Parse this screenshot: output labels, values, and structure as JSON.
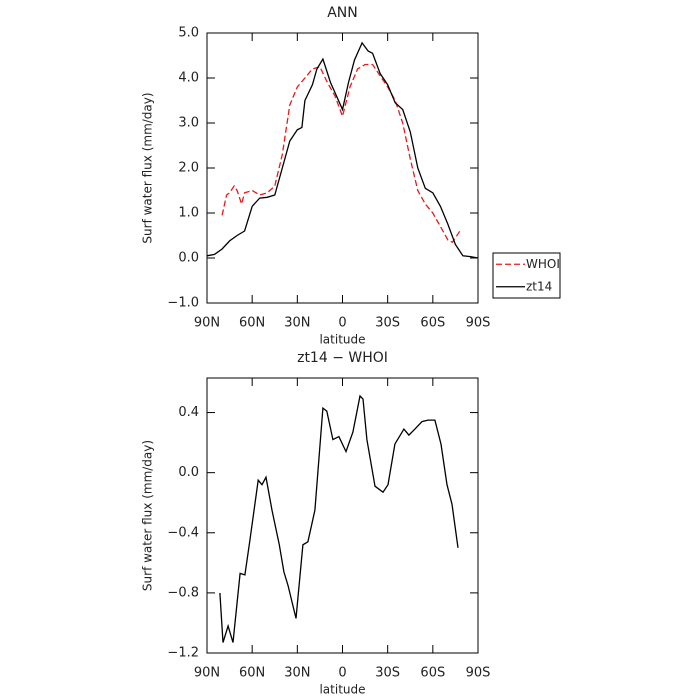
{
  "chart_data": [
    {
      "type": "line",
      "title": "ANN",
      "xlabel": "latitude",
      "ylabel": "Surf water flux (mm/day)",
      "xlim": [
        90,
        -90
      ],
      "ylim": [
        -1,
        5
      ],
      "xticks": [
        {
          "value": 90,
          "label": "90N"
        },
        {
          "value": 60,
          "label": "60N"
        },
        {
          "value": 30,
          "label": "30N"
        },
        0,
        {
          "value": -30,
          "label": "30S"
        },
        {
          "value": -60,
          "label": "60S"
        },
        {
          "value": -90,
          "label": "90S"
        }
      ],
      "yticks": [
        {
          "value": -1,
          "label": "−1.0"
        },
        {
          "value": 0,
          "label": "0.0"
        },
        {
          "value": 1,
          "label": "1.0"
        },
        {
          "value": 2,
          "label": "2.0"
        },
        {
          "value": 3,
          "label": "3.0"
        },
        {
          "value": 4,
          "label": "4.0"
        },
        {
          "value": 5,
          "label": "5.0"
        }
      ],
      "legend": "right",
      "series": [
        {
          "name": "WHOI",
          "color": "#e8191c",
          "dashed": true,
          "x": [
            80,
            77,
            75,
            72,
            70,
            67,
            65,
            60,
            55,
            50,
            45,
            40,
            35,
            30,
            25,
            20,
            15,
            10,
            5,
            0,
            -5,
            -10,
            -15,
            -20,
            -25,
            -30,
            -35,
            -40,
            -45,
            -50,
            -55,
            -60,
            -65,
            -70,
            -73,
            -78
          ],
          "values": [
            0.95,
            1.4,
            1.45,
            1.6,
            1.5,
            1.2,
            1.45,
            1.5,
            1.4,
            1.45,
            1.6,
            2.3,
            3.4,
            3.8,
            4.0,
            4.2,
            4.25,
            3.9,
            3.6,
            3.15,
            3.8,
            4.2,
            4.3,
            4.3,
            4.05,
            3.8,
            3.5,
            3.0,
            2.2,
            1.5,
            1.2,
            1.0,
            0.7,
            0.4,
            0.35,
            0.6
          ]
        },
        {
          "name": "zt14",
          "color": "#000000",
          "dashed": false,
          "x": [
            90,
            85,
            80,
            75,
            70,
            65,
            60,
            55,
            50,
            45,
            40,
            35,
            30,
            27,
            25,
            20,
            17,
            13,
            8,
            4,
            0,
            -4,
            -8,
            -13,
            -17,
            -20,
            -25,
            -30,
            -35,
            -40,
            -45,
            -50,
            -55,
            -60,
            -65,
            -70,
            -75,
            -80,
            -85,
            -90
          ],
          "values": [
            0.05,
            0.08,
            0.2,
            0.38,
            0.5,
            0.6,
            1.15,
            1.33,
            1.35,
            1.4,
            2.0,
            2.6,
            2.85,
            2.9,
            3.5,
            3.85,
            4.2,
            4.42,
            3.9,
            3.6,
            3.3,
            3.9,
            4.4,
            4.78,
            4.6,
            4.55,
            4.1,
            3.85,
            3.45,
            3.3,
            2.8,
            2.0,
            1.55,
            1.45,
            1.15,
            0.75,
            0.3,
            0.05,
            0.03,
            0.0
          ]
        }
      ]
    },
    {
      "type": "line",
      "title": "zt14 − WHOI",
      "xlabel": "latitude",
      "ylabel": "Surf water flux (mm/day)",
      "xlim": [
        90,
        -90
      ],
      "ylim": [
        -1.2,
        0.63
      ],
      "xticks": [
        {
          "value": 90,
          "label": "90N"
        },
        {
          "value": 60,
          "label": "60N"
        },
        {
          "value": 30,
          "label": "30N"
        },
        0,
        {
          "value": -30,
          "label": "30S"
        },
        {
          "value": -60,
          "label": "60S"
        },
        {
          "value": -90,
          "label": "90S"
        }
      ],
      "yticks": [
        {
          "value": -1.2,
          "label": "−1.2"
        },
        {
          "value": -0.8,
          "label": "−0.8"
        },
        {
          "value": -0.4,
          "label": "−0.4"
        },
        {
          "value": 0,
          "label": "0.0"
        },
        0.4
      ],
      "series": [
        {
          "color": "#000000",
          "dashed": false,
          "x": [
            81.4,
            79.4,
            76,
            72.7,
            68,
            64.8,
            61.5,
            56,
            53.5,
            50.8,
            46.8,
            42,
            38.9,
            36.2,
            30.9,
            26.3,
            23,
            18.3,
            13,
            10.4,
            6.4,
            2.4,
            -2.3,
            -6.9,
            -11.6,
            -13.6,
            -16.2,
            -21.6,
            -26.9,
            -30.2,
            -34.8,
            -40.8,
            -44.1,
            -48.1,
            -52.8,
            -56.7,
            -61.4,
            -65.4,
            -69.4,
            -72.7,
            -76.7
          ],
          "values": [
            -0.8,
            -1.13,
            -1.02,
            -1.13,
            -0.67,
            -0.68,
            -0.45,
            -0.05,
            -0.08,
            -0.03,
            -0.25,
            -0.48,
            -0.66,
            -0.75,
            -0.97,
            -0.48,
            -0.46,
            -0.25,
            0.43,
            0.41,
            0.22,
            0.24,
            0.14,
            0.27,
            0.51,
            0.49,
            0.22,
            -0.09,
            -0.13,
            -0.08,
            0.19,
            0.29,
            0.25,
            0.29,
            0.34,
            0.35,
            0.35,
            0.19,
            -0.08,
            -0.21,
            -0.5
          ]
        }
      ]
    }
  ]
}
